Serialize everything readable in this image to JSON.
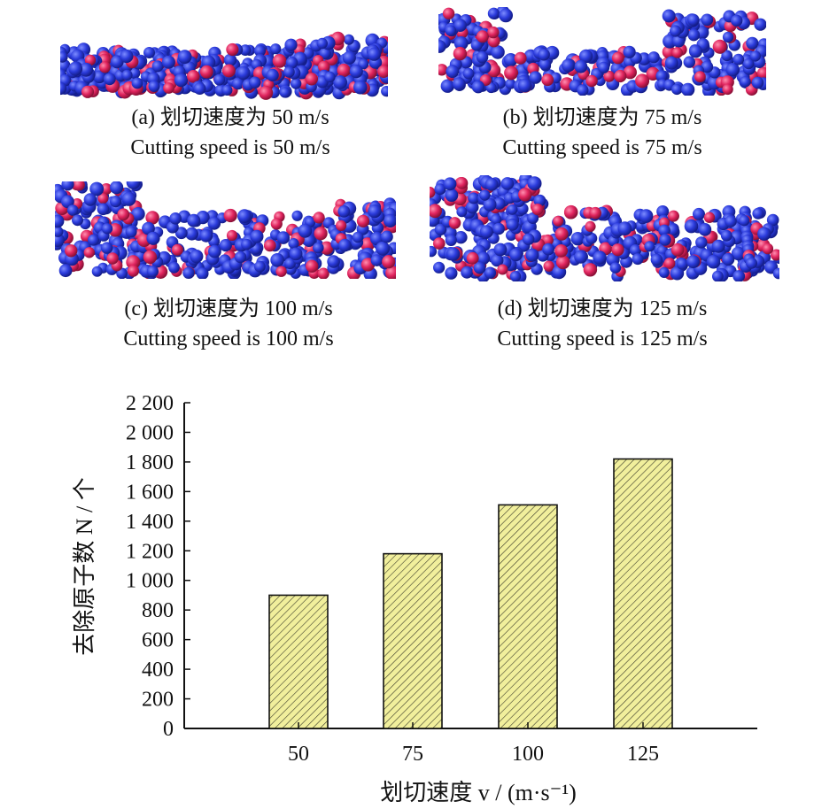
{
  "panels": [
    {
      "cn": "(a) 划切速度为 50 m/s",
      "en": "Cutting speed is 50 m/s"
    },
    {
      "cn": "(b) 划切速度为 75 m/s",
      "en": "Cutting speed is 75 m/s"
    },
    {
      "cn": "(c) 划切速度为 100 m/s",
      "en": "Cutting speed is 100 m/s"
    },
    {
      "cn": "(d) 划切速度为 125 m/s",
      "en": "Cutting speed is 125 m/s"
    }
  ],
  "colors": {
    "atom_blue": "#2b3bdc",
    "atom_red": "#e0245e",
    "bar_fill": "#f1ef9c",
    "bar_hatch": "#3b3b2a",
    "axis": "#111111"
  },
  "chart_data": {
    "type": "bar",
    "categories": [
      "50",
      "75",
      "100",
      "125"
    ],
    "values": [
      900,
      1180,
      1510,
      1820
    ],
    "ylim": [
      0,
      2200
    ],
    "yticks": [
      0,
      200,
      400,
      600,
      800,
      1000,
      1200,
      1400,
      1600,
      1800,
      2000,
      2200
    ],
    "ytick_labels": [
      "0",
      "200",
      "400",
      "600",
      "800",
      "1 000",
      "1 200",
      "1 400",
      "1 600",
      "1 800",
      "2 000",
      "2 200"
    ],
    "xlabel": "划切速度 v / (m·s⁻¹)",
    "ylabel": "去除原子数 N / 个",
    "grid": false,
    "legend": "none"
  }
}
